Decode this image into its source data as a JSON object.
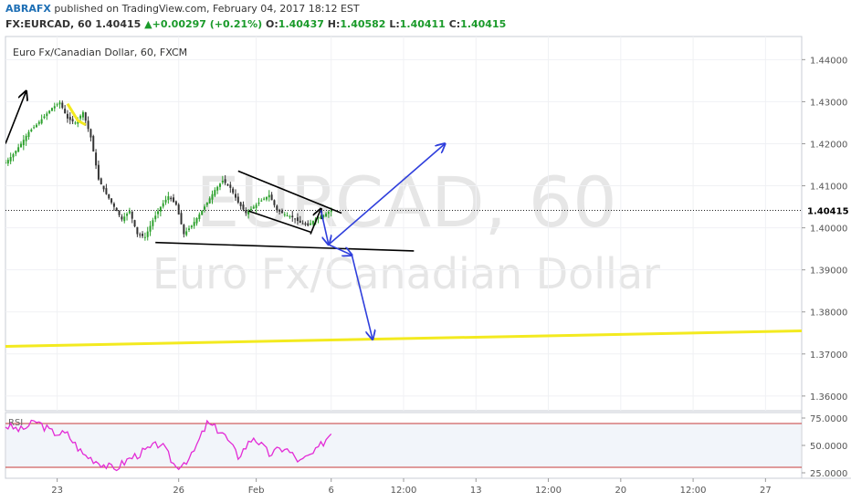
{
  "header": {
    "publisher": "ABRAFX",
    "published_text": "published on TradingView.com, February 04, 2017 18:12 EST",
    "symbol": "FX:EURCAD, 60",
    "last": "1.40415",
    "change_arrow": "▲",
    "change": "+0.00297 (+0.21%)",
    "o_label": "O:",
    "o": "1.40437",
    "h_label": "H:",
    "h": "1.40582",
    "l_label": "L:",
    "l": "1.40411",
    "c_label": "C:",
    "c": "1.40415"
  },
  "chart_data": {
    "type": "line",
    "title": "Euro Fx/Canadian Dollar, 60, FXCM",
    "watermark_symbol": "EURCAD, 60",
    "watermark_name": "Euro Fx/Canadian Dollar",
    "ylim": [
      1.3565,
      1.4455
    ],
    "y_ticks": [
      "1.44000",
      "1.43000",
      "1.42000",
      "1.41000",
      "1.40000",
      "1.39000",
      "1.38000",
      "1.37000",
      "1.36000"
    ],
    "y_tick_values": [
      1.44,
      1.43,
      1.42,
      1.41,
      1.4,
      1.39,
      1.38,
      1.37,
      1.36
    ],
    "current_price_label": "1.40415",
    "current_price": 1.40415,
    "x_ticks": [
      "23",
      "26",
      "Feb",
      "6",
      "12:00",
      "13",
      "12:00",
      "20",
      "12:00",
      "27"
    ],
    "x_tick_bars": [
      20,
      67,
      97,
      126,
      154,
      182,
      210,
      238,
      266,
      294
    ],
    "x_range_bars": [
      0,
      308
    ],
    "price_series": {
      "name": "EURCAD",
      "bar_index": [
        0,
        3,
        6,
        9,
        12,
        15,
        18,
        21,
        24,
        27,
        30,
        33,
        36,
        39,
        42,
        45,
        48,
        51,
        54,
        57,
        60,
        63,
        66,
        69,
        72,
        75,
        78,
        81,
        84,
        87,
        90,
        93,
        96,
        99,
        102,
        105,
        108,
        111,
        114,
        117,
        120,
        123,
        126
      ],
      "values": [
        1.4155,
        1.4175,
        1.42,
        1.4228,
        1.4245,
        1.4265,
        1.4285,
        1.4298,
        1.426,
        1.425,
        1.4275,
        1.4215,
        1.4115,
        1.408,
        1.405,
        1.402,
        1.404,
        1.3985,
        1.3978,
        1.4018,
        1.405,
        1.4075,
        1.4055,
        1.3985,
        1.4005,
        1.4032,
        1.406,
        1.409,
        1.4112,
        1.4095,
        1.406,
        1.4035,
        1.405,
        1.4065,
        1.4078,
        1.4042,
        1.4032,
        1.4025,
        1.4012,
        1.4005,
        1.4022,
        1.403,
        1.4042
      ]
    },
    "rsi": {
      "label": "RSI",
      "ylim": [
        20,
        80
      ],
      "y_ticks": [
        "75.0000",
        "50.0000",
        "25.0000"
      ],
      "y_tick_values": [
        75,
        50,
        25
      ],
      "overbought": 70,
      "oversold": 30,
      "bar_index": [
        0,
        6,
        12,
        18,
        24,
        30,
        36,
        42,
        48,
        54,
        60,
        66,
        72,
        78,
        84,
        90,
        96,
        102,
        108,
        114,
        120,
        126
      ],
      "values": [
        68,
        64,
        72,
        62,
        60,
        42,
        35,
        28,
        38,
        45,
        52,
        30,
        40,
        70,
        62,
        40,
        58,
        42,
        48,
        35,
        44,
        62
      ]
    },
    "drawings": {
      "trendlines": [
        {
          "name": "support",
          "points": [
            [
              58,
              1.3965
            ],
            [
              158,
              1.3945
            ]
          ],
          "color": "#000000"
        },
        {
          "name": "wedge-upper",
          "points": [
            [
              90,
              1.4135
            ],
            [
              130,
              1.4035
            ]
          ],
          "color": "#000000"
        },
        {
          "name": "wedge-lower",
          "points": [
            [
              94,
              1.404
            ],
            [
              118,
              1.399
            ]
          ],
          "color": "#000000"
        },
        {
          "name": "yellow-support",
          "points": [
            [
              0,
              1.3718
            ],
            [
              308,
              1.3755
            ]
          ],
          "color": "#f3ea1f"
        }
      ],
      "arrows": [
        {
          "name": "early-up-arrow",
          "from": [
            0,
            1.42
          ],
          "to": [
            8,
            1.4325
          ],
          "color": "#000000"
        },
        {
          "name": "wedge-up-arrow",
          "from": [
            118,
            1.3985
          ],
          "to": [
            122,
            1.4045
          ],
          "color": "#000000"
        },
        {
          "name": "blue-down-arrow-1",
          "from": [
            122,
            1.4042
          ],
          "to": [
            125,
            1.396
          ],
          "color": "#2f3fdc"
        },
        {
          "name": "blue-up-arrow",
          "from": [
            125,
            1.396
          ],
          "to": [
            170,
            1.42
          ],
          "color": "#2f3fdc"
        },
        {
          "name": "blue-right-arrow",
          "from": [
            125,
            1.396
          ],
          "to": [
            134,
            1.3935
          ],
          "color": "#2f3fdc"
        },
        {
          "name": "blue-down-arrow-2",
          "from": [
            134,
            1.3935
          ],
          "to": [
            142,
            1.3735
          ],
          "color": "#2f3fdc"
        }
      ]
    },
    "colors": {
      "up": "#26a69a",
      "down": "#ef5350",
      "candle_up": "#2ca02c",
      "candle_down": "#333333",
      "rsi_line": "#e32bd6",
      "rsi_band_line": "#c53a3a",
      "rsi_band_fill": "#f2f5fa",
      "axis_text": "#555555",
      "highlight_yellow": "#f3ea1f"
    }
  }
}
